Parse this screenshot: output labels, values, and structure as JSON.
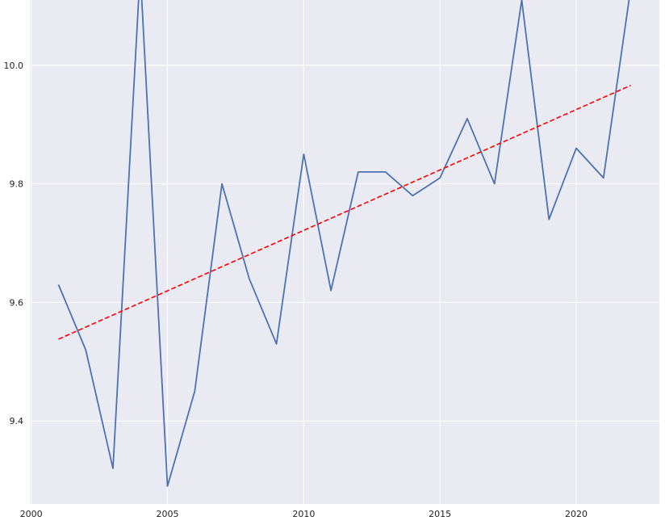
{
  "chart_data": {
    "type": "line",
    "title": "",
    "xlabel": "",
    "ylabel": "",
    "xlim": [
      1999.95,
      2023.05
    ],
    "ylim": [
      9.26,
      10.11
    ],
    "xticks": [
      2000,
      2005,
      2010,
      2015,
      2020
    ],
    "yticks": [
      9.4,
      9.6,
      9.8,
      10.0
    ],
    "xtick_labels": [
      "2000",
      "2005",
      "2010",
      "2015",
      "2020"
    ],
    "ytick_labels": [
      "9.4",
      "9.6",
      "9.8",
      "10.0"
    ],
    "grid": true,
    "legend": "none",
    "series": [
      {
        "style": "solid",
        "color": "#4c72b0",
        "x": [
          2001,
          2002,
          2003,
          2004,
          2005,
          2006,
          2007,
          2008,
          2009,
          2010,
          2011,
          2012,
          2013,
          2014,
          2015,
          2016,
          2017,
          2018,
          2019,
          2020,
          2021,
          2022
        ],
        "y": [
          9.63,
          9.52,
          9.32,
          10.16,
          9.29,
          9.45,
          9.8,
          9.64,
          9.53,
          9.85,
          9.62,
          9.82,
          9.82,
          9.78,
          9.81,
          9.91,
          9.8,
          10.11,
          9.74,
          9.86,
          9.81,
          10.13
        ]
      },
      {
        "style": "dashed",
        "color": "#ff0000",
        "x": [
          2001,
          2022
        ],
        "y": [
          9.538,
          9.966
        ]
      }
    ],
    "background": "#eaeaf2"
  }
}
